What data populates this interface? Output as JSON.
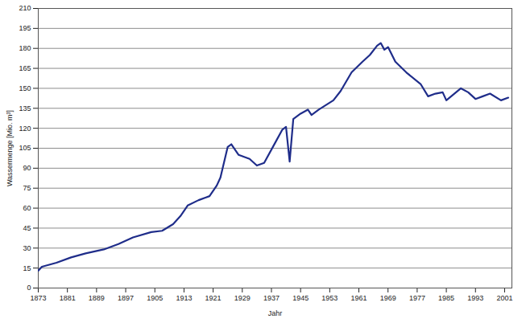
{
  "chart_data": {
    "type": "line",
    "x_label": "Jahr",
    "y_label": "Wassermenge [Mio. m³]",
    "x": [
      1873,
      1874,
      1878,
      1882,
      1886,
      1891,
      1895,
      1899,
      1904,
      1907,
      1910,
      1912,
      1914,
      1917,
      1920,
      1922,
      1923,
      1925,
      1926,
      1928,
      1931,
      1933,
      1935,
      1938,
      1940,
      1941,
      1942,
      1943,
      1945,
      1947,
      1948,
      1950,
      1954,
      1956,
      1959,
      1962,
      1964,
      1966,
      1967,
      1968,
      1969,
      1971,
      1974,
      1978,
      1980,
      1982,
      1984,
      1985,
      1989,
      1991,
      1993,
      1995,
      1997,
      2000,
      2002
    ],
    "series": [
      {
        "name": "Wassermenge",
        "color": "#1f2d8a",
        "values": [
          13,
          16,
          19,
          23,
          26,
          29,
          33,
          38,
          42,
          43,
          48,
          54,
          62,
          66,
          69,
          77,
          83,
          106,
          108,
          100,
          97,
          92,
          94,
          109,
          119,
          121,
          95,
          127,
          131,
          134,
          130,
          134,
          141,
          148,
          162,
          170,
          175,
          182,
          184,
          179,
          181,
          170,
          162,
          153,
          144,
          146,
          147,
          141,
          150,
          147,
          142,
          144,
          146,
          141,
          143
        ]
      }
    ],
    "xlim": [
      1873,
      2003
    ],
    "xticks": [
      1873,
      1881,
      1889,
      1897,
      1905,
      1913,
      1921,
      1929,
      1937,
      1945,
      1953,
      1961,
      1969,
      1977,
      1985,
      1993,
      2001
    ],
    "ylim": [
      0,
      210
    ],
    "yticks": [
      0,
      15,
      30,
      45,
      60,
      75,
      90,
      105,
      120,
      135,
      150,
      165,
      180,
      195,
      210
    ],
    "grid": true
  }
}
